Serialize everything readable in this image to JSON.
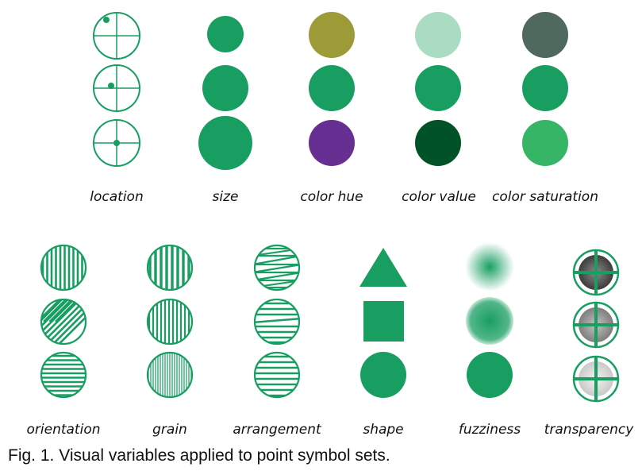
{
  "colors": {
    "green": "#199e62",
    "hue_olive": "#9c9b38",
    "hue_purple": "#672f91",
    "value_light": "#a9dcc3",
    "value_dark": "#015227",
    "saturation_dull": "#50695e",
    "saturation_bright": "#36b566"
  },
  "labels": {
    "location": "location",
    "size": "size",
    "color_hue": "color hue",
    "color_value": "color value",
    "color_saturation": "color saturation",
    "orientation": "orientation",
    "grain": "grain",
    "arrangement": "arrangement",
    "shape": "shape",
    "fuzziness": "fuzziness",
    "transparency": "transparency"
  },
  "caption": "Fig. 1.  Visual variables applied to point symbol sets."
}
